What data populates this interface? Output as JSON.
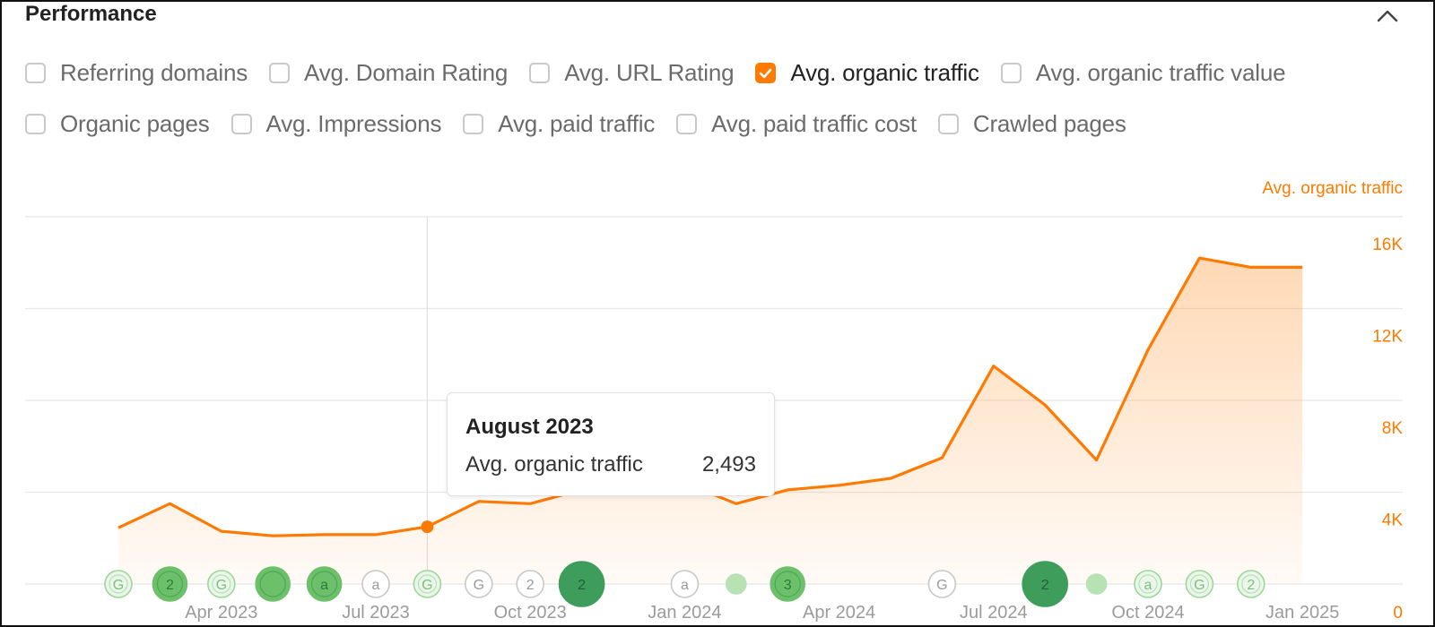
{
  "panel": {
    "title": "Performance",
    "collapse_icon": "chevron-up-icon"
  },
  "metrics": {
    "row1": [
      {
        "label": "Referring domains",
        "checked": false
      },
      {
        "label": "Avg. Domain Rating",
        "checked": false
      },
      {
        "label": "Avg. URL Rating",
        "checked": false
      },
      {
        "label": "Avg. organic traffic",
        "checked": true
      },
      {
        "label": "Avg. organic traffic value",
        "checked": false
      }
    ],
    "row2": [
      {
        "label": "Organic pages",
        "checked": false
      },
      {
        "label": "Avg. Impressions",
        "checked": false
      },
      {
        "label": "Avg. paid traffic",
        "checked": false
      },
      {
        "label": "Avg. paid traffic cost",
        "checked": false
      },
      {
        "label": "Crawled pages",
        "checked": false
      }
    ]
  },
  "colors": {
    "accent": "#ff7a00",
    "grid": "#e8e8e8",
    "event_light": "#9ed79a",
    "event_mid": "#6cc06a",
    "event_dark": "#3e9d5a"
  },
  "tooltip": {
    "title": "August 2023",
    "label": "Avg. organic traffic",
    "value": "2,493"
  },
  "chart_data": {
    "type": "area",
    "ylabel": "Avg. organic traffic",
    "ylim": [
      0,
      16000
    ],
    "yticks": [
      "0",
      "4K",
      "8K",
      "12K",
      "16K"
    ],
    "y_axis_position": "right",
    "grid": true,
    "x_tick_labels": [
      "Apr 2023",
      "Jul 2023",
      "Oct 2023",
      "Jan 2024",
      "Apr 2024",
      "Jul 2024",
      "Oct 2024",
      "Jan 2025"
    ],
    "x": [
      "Feb 2023",
      "Mar 2023",
      "Apr 2023",
      "May 2023",
      "Jun 2023",
      "Jul 2023",
      "Aug 2023",
      "Sep 2023",
      "Oct 2023",
      "Nov 2023",
      "Dec 2023",
      "Jan 2024",
      "Feb 2024",
      "Mar 2024",
      "Apr 2024",
      "May 2024",
      "Jun 2024",
      "Jul 2024",
      "Aug 2024",
      "Sep 2024",
      "Oct 2024",
      "Nov 2024",
      "Dec 2024",
      "Jan 2025"
    ],
    "series": [
      {
        "values": [
          2450,
          3500,
          2300,
          2100,
          2150,
          2150,
          2493,
          3600,
          3500,
          4100,
          4300,
          4400,
          3500,
          4100,
          4300,
          4600,
          5500,
          9500,
          7800,
          5400,
          10200,
          14200,
          13800,
          13800
        ]
      }
    ],
    "highlight": {
      "x": "Aug 2023",
      "value": 2493
    },
    "events": [
      {
        "x": "Feb 2023",
        "label": "G",
        "size": 1,
        "shade": "outline"
      },
      {
        "x": "Mar 2023",
        "label": "2",
        "size": 2,
        "shade": "mid"
      },
      {
        "x": "Apr 2023",
        "label": "G",
        "size": 1,
        "shade": "outline"
      },
      {
        "x": "May 2023",
        "label": "",
        "size": 2,
        "shade": "mid"
      },
      {
        "x": "Jun 2023",
        "label": "a",
        "size": 2,
        "shade": "mid"
      },
      {
        "x": "Jul 2023",
        "label": "a",
        "size": 1,
        "shade": "plain"
      },
      {
        "x": "Aug 2023",
        "label": "G",
        "size": 1,
        "shade": "outline"
      },
      {
        "x": "Sep 2023",
        "label": "G",
        "size": 1,
        "shade": "plain"
      },
      {
        "x": "Oct 2023",
        "label": "2",
        "size": 1,
        "shade": "plain"
      },
      {
        "x": "Nov 2023",
        "label": "2",
        "size": 3,
        "shade": "dark"
      },
      {
        "x": "Jan 2024",
        "label": "a",
        "size": 1,
        "shade": "plain"
      },
      {
        "x": "Feb 2024",
        "label": "",
        "size": 0,
        "shade": "light"
      },
      {
        "x": "Mar 2024",
        "label": "3",
        "size": 2,
        "shade": "mid"
      },
      {
        "x": "Jun 2024",
        "label": "G",
        "size": 1,
        "shade": "plain"
      },
      {
        "x": "Aug 2024",
        "label": "2",
        "size": 3,
        "shade": "dark"
      },
      {
        "x": "Sep 2024",
        "label": "",
        "size": 0,
        "shade": "light"
      },
      {
        "x": "Oct 2024",
        "label": "a",
        "size": 1,
        "shade": "outline"
      },
      {
        "x": "Nov 2024",
        "label": "G",
        "size": 1,
        "shade": "outline"
      },
      {
        "x": "Dec 2024",
        "label": "2",
        "size": 1,
        "shade": "outline"
      }
    ]
  }
}
